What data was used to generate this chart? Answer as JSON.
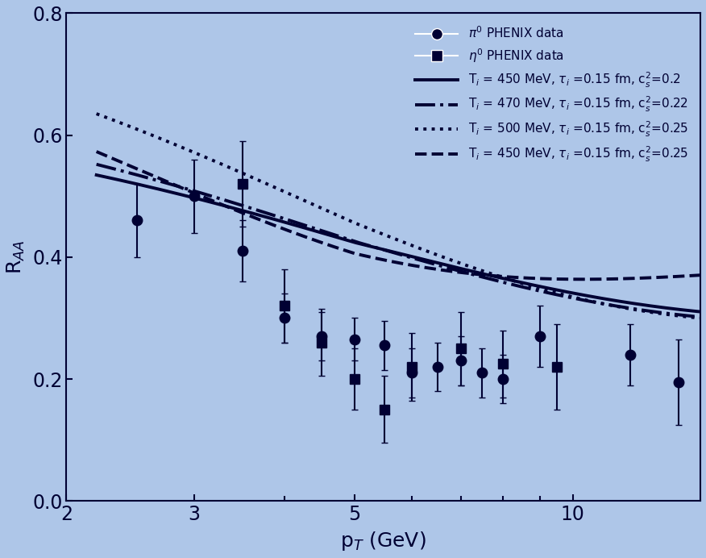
{
  "background_color": "#aec6e8",
  "plot_bg_color": "#aec6e8",
  "text_color": "#000033",
  "line_color": "#000033",
  "pi0_x": [
    2.5,
    3.0,
    3.5,
    4.0,
    4.5,
    5.0,
    5.5,
    6.0,
    6.5,
    7.0,
    7.5,
    8.0,
    9.0,
    12.0,
    14.0
  ],
  "pi0_y": [
    0.46,
    0.5,
    0.41,
    0.3,
    0.27,
    0.265,
    0.255,
    0.21,
    0.22,
    0.23,
    0.21,
    0.2,
    0.27,
    0.24,
    0.195
  ],
  "pi0_yerr": [
    0.06,
    0.06,
    0.05,
    0.04,
    0.04,
    0.035,
    0.04,
    0.04,
    0.04,
    0.04,
    0.04,
    0.04,
    0.05,
    0.05,
    0.07
  ],
  "eta0_x": [
    3.5,
    4.0,
    4.5,
    5.0,
    5.5,
    6.0,
    7.0,
    8.0,
    9.5
  ],
  "eta0_y": [
    0.52,
    0.32,
    0.26,
    0.2,
    0.15,
    0.22,
    0.25,
    0.225,
    0.22
  ],
  "eta0_yerr": [
    0.07,
    0.06,
    0.055,
    0.05,
    0.055,
    0.055,
    0.06,
    0.055,
    0.07
  ],
  "xlim": [
    2.0,
    15.0
  ],
  "ylim": [
    0.0,
    0.8
  ],
  "xlabel": "p$_T$ (GeV)",
  "ylabel": "R$_{AA}$",
  "curve1_label": "T$_i$ = 450 MeV, $\\tau_i$ =0.15 fm, c$_s^2$=0.2",
  "curve2_label": "T$_i$ = 470 MeV, $\\tau_i$ =0.15 fm, c$_s^2$=0.22",
  "curve3_label": "T$_i$ = 500 MeV, $\\tau_i$ =0.15 fm, c$_s^2$=0.25",
  "curve4_label": "T$_i$ = 450 MeV, $\\tau_i$ =0.15 fm, c$_s^2$=0.25",
  "legend_pi0": "$\\pi^0$ PHENIX data",
  "legend_eta0": "$\\eta^0$ PHENIX data"
}
